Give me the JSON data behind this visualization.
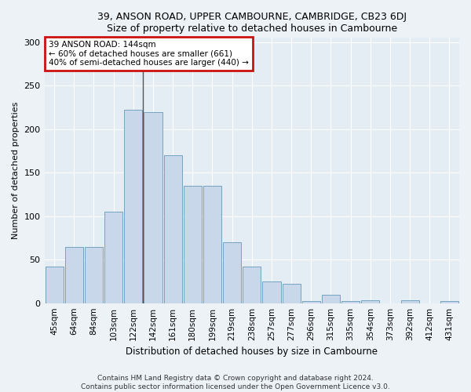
{
  "title1": "39, ANSON ROAD, UPPER CAMBOURNE, CAMBRIDGE, CB23 6DJ",
  "title2": "Size of property relative to detached houses in Cambourne",
  "xlabel": "Distribution of detached houses by size in Cambourne",
  "ylabel": "Number of detached properties",
  "categories": [
    "45sqm",
    "64sqm",
    "84sqm",
    "103sqm",
    "122sqm",
    "142sqm",
    "161sqm",
    "180sqm",
    "199sqm",
    "219sqm",
    "238sqm",
    "257sqm",
    "277sqm",
    "296sqm",
    "315sqm",
    "335sqm",
    "354sqm",
    "373sqm",
    "392sqm",
    "412sqm",
    "431sqm"
  ],
  "values": [
    42,
    65,
    65,
    105,
    222,
    220,
    170,
    135,
    135,
    70,
    42,
    25,
    22,
    2,
    10,
    2,
    3,
    0,
    3,
    0,
    2
  ],
  "bar_color": "#c8d8ea",
  "bar_edge_color": "#6699bb",
  "vline_x": 5,
  "vline_color": "#555555",
  "annotation_text": "39 ANSON ROAD: 144sqm\n← 60% of detached houses are smaller (661)\n40% of semi-detached houses are larger (440) →",
  "annotation_edge_color": "#cc1111",
  "ylim": [
    0,
    305
  ],
  "yticks": [
    0,
    50,
    100,
    150,
    200,
    250,
    300
  ],
  "plot_bg": "#e4ecf4",
  "fig_bg": "#edf2f7",
  "footer1": "Contains HM Land Registry data © Crown copyright and database right 2024.",
  "footer2": "Contains public sector information licensed under the Open Government Licence v3.0."
}
